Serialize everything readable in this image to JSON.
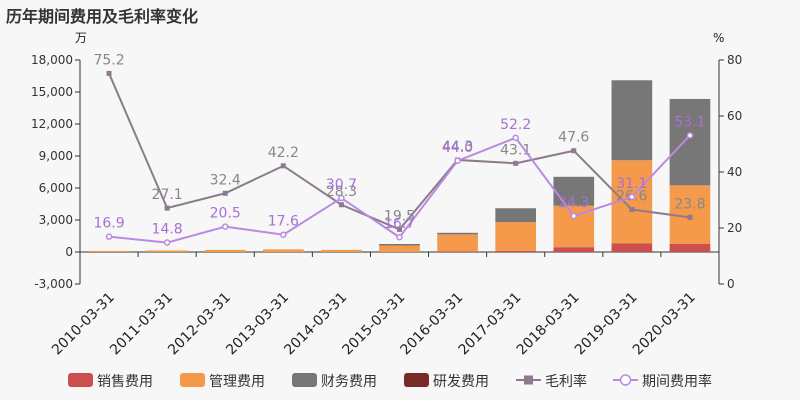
{
  "chart_data": {
    "type": "bar",
    "title": "历年期间费用及毛利率变化",
    "left_unit": "万",
    "right_unit": "%",
    "categories": [
      "2010-03-31",
      "2011-03-31",
      "2012-03-31",
      "2013-03-31",
      "2014-03-31",
      "2015-03-31",
      "2016-03-31",
      "2017-03-31",
      "2018-03-31",
      "2019-03-31",
      "2020-03-31"
    ],
    "y_left": {
      "min": -3000,
      "max": 18000,
      "ticks": [
        "-3,000",
        "0",
        "3,000",
        "6,000",
        "9,000",
        "12,000",
        "15,000",
        "18,000"
      ]
    },
    "y_right": {
      "min": 0,
      "max": 80,
      "ticks": [
        "0",
        "20",
        "40",
        "60",
        "80"
      ]
    },
    "grid": false,
    "legend_position": "bottom",
    "series": [
      {
        "name": "销售费用",
        "kind": "bar",
        "axis": "left",
        "color": "#cc4e4e",
        "values": [
          0,
          0,
          0,
          0,
          0,
          0,
          50,
          100,
          450,
          800,
          750
        ]
      },
      {
        "name": "管理费用",
        "kind": "bar",
        "axis": "left",
        "color": "#f59a4a",
        "values": [
          100,
          150,
          200,
          250,
          200,
          600,
          1600,
          2700,
          3900,
          7800,
          5500
        ]
      },
      {
        "name": "财务费用",
        "kind": "bar",
        "axis": "left",
        "color": "#777777",
        "values": [
          0,
          0,
          0,
          0,
          0,
          150,
          150,
          1300,
          2700,
          7500,
          8100
        ]
      },
      {
        "name": "研发费用",
        "kind": "bar",
        "axis": "left",
        "color": "#7b2a2a",
        "values": [
          0,
          0,
          0,
          0,
          0,
          0,
          0,
          0,
          0,
          0,
          0
        ]
      },
      {
        "name": "毛利率",
        "kind": "line",
        "axis": "right",
        "color": "#8c7b8c",
        "marker": "square",
        "values": [
          75.2,
          27.1,
          32.4,
          42.2,
          28.3,
          19.5,
          44.3,
          43.1,
          47.6,
          26.6,
          23.8
        ],
        "labels": [
          "75.2",
          "27.1",
          "32.4",
          "42.2",
          "28.3",
          "19.5",
          "44.3",
          "43.1",
          "47.6",
          "26.6",
          "23.8"
        ],
        "label_color": "#888888"
      },
      {
        "name": "期间费用率",
        "kind": "line",
        "axis": "right",
        "color": "#b98be0",
        "marker": "circle",
        "values": [
          16.9,
          14.8,
          20.5,
          17.6,
          30.7,
          16.7,
          44.0,
          52.2,
          24.3,
          31.1,
          53.1
        ],
        "labels": [
          "16.9",
          "14.8",
          "20.5",
          "17.6",
          "30.7",
          "16.7",
          "44.0",
          "52.2",
          "24.3",
          "31.1",
          "53.1"
        ],
        "label_color": "#a86fd6"
      }
    ]
  }
}
